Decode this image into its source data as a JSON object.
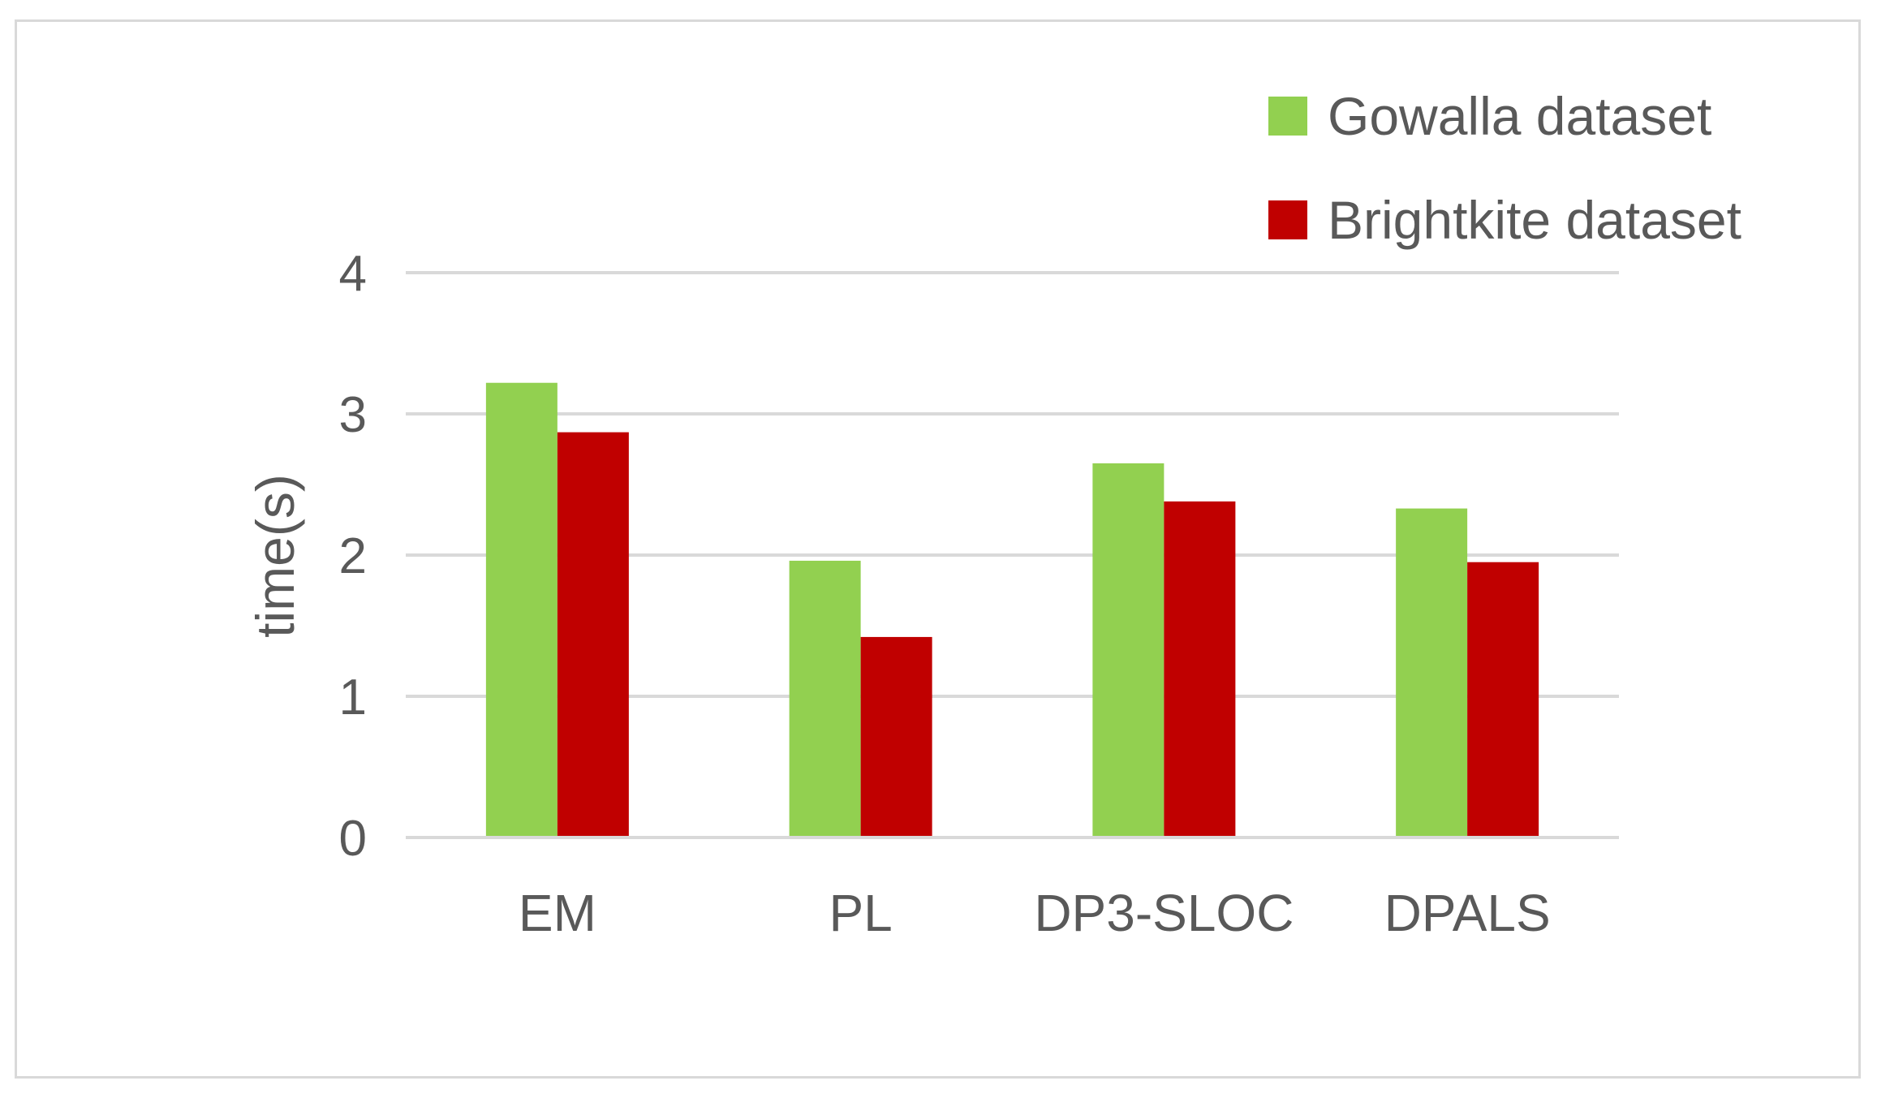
{
  "chart_data": {
    "type": "bar",
    "title": "",
    "xlabel": "",
    "ylabel": "time(s)",
    "categories": [
      "EM",
      "PL",
      "DP3-SLOC",
      "DPALS"
    ],
    "series": [
      {
        "name": "Gowalla dataset",
        "color": "#92d050",
        "values": [
          3.22,
          1.96,
          2.65,
          2.33
        ]
      },
      {
        "name": "Brightkite dataset",
        "color": "#c00000",
        "values": [
          2.87,
          1.42,
          2.38,
          1.95
        ]
      }
    ],
    "ylim": [
      0,
      4
    ],
    "yticks": [
      "0",
      "1",
      "2",
      "3",
      "4"
    ],
    "grid": true,
    "legend_position": "top-right"
  }
}
